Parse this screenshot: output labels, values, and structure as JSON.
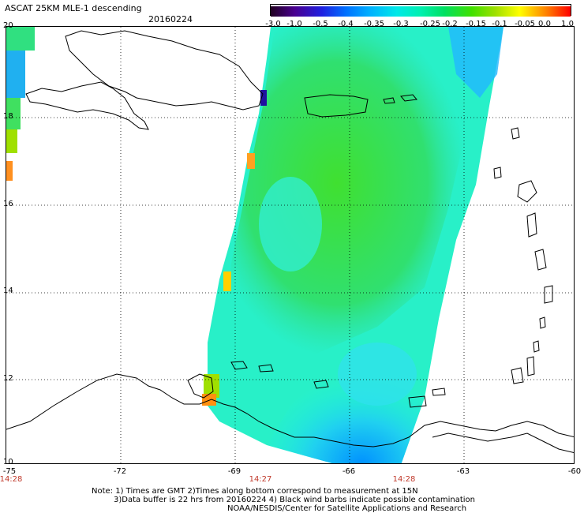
{
  "title": "ASCAT 25KM MLE-1 descending",
  "date": "20160224",
  "colorbar": {
    "labels": [
      "-3.0",
      "-1.0",
      "-0.5",
      "-0.4",
      "-0.35",
      "-0.3",
      "-0.25",
      "-0.2",
      "-0.15",
      "-0.1",
      "-0.05",
      "0.0",
      "1.0"
    ],
    "colors": [
      "#200020",
      "#4a0090",
      "#2020e0",
      "#0070ff",
      "#00b0ff",
      "#00e8e8",
      "#00f0b0",
      "#00e060",
      "#40e000",
      "#a0e000",
      "#ffff00",
      "#ff8000",
      "#ff0000"
    ]
  },
  "lat_labels": [
    "20",
    "18",
    "16",
    "14",
    "12",
    "10"
  ],
  "lon_labels": [
    "-75",
    "-72",
    "-69",
    "-66",
    "-63",
    "-60"
  ],
  "time_labels": [
    "14:28",
    "14:27",
    "14:28"
  ],
  "notes": [
    "Note: 1) Times are GMT 2)Times along bottom correspond to measurement at 15N",
    "3)Data buffer is 22 hrs from 20160224 4) Black wind barbs indicate possible contamination",
    "NOAA/NESDIS/Center for Satellite Applications and Research"
  ],
  "colors": {
    "swath_green": "#30e050",
    "swath_cyan": "#20f0e0",
    "swath_blue": "#10a0ff",
    "coast": "#000000",
    "time_label": "#c0392b"
  }
}
